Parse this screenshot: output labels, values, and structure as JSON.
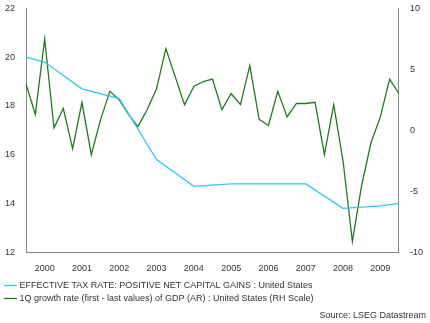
{
  "chart_data": {
    "type": "line",
    "source": "Source: LSEG Datastream",
    "categories": [
      null,
      null,
      "2000",
      null,
      null,
      null,
      "2001",
      null,
      null,
      null,
      "2002",
      null,
      null,
      null,
      "2003",
      null,
      null,
      null,
      "2004",
      null,
      null,
      null,
      "2005",
      null,
      null,
      null,
      "2006",
      null,
      null,
      null,
      "2007",
      null,
      null,
      null,
      "2008",
      null,
      null,
      null,
      "2009",
      null,
      null
    ],
    "series": [
      {
        "name": "EFFECTIVE TAX RATE: POSITIVE NET CAPITAL GAINS : United States",
        "color": "#33c6f0",
        "axis": "y",
        "values": [
          20.0,
          null,
          19.8,
          null,
          null,
          null,
          18.7,
          null,
          null,
          null,
          18.3,
          null,
          null,
          null,
          15.8,
          null,
          null,
          null,
          14.7,
          null,
          null,
          null,
          14.8,
          null,
          null,
          null,
          14.8,
          null,
          null,
          null,
          14.8,
          null,
          null,
          null,
          13.8,
          null,
          null,
          null,
          13.9,
          null,
          14.0
        ]
      },
      {
        "name": "1Q growth rate (first - last values) of GDP (AR) : United States (RH Scale)",
        "color": "#1f7a1f",
        "axis": "y2",
        "values": [
          3.8,
          1.3,
          7.5,
          0.2,
          1.8,
          -1.5,
          2.3,
          -2.0,
          0.9,
          3.2,
          2.5,
          1.3,
          0.3,
          1.7,
          3.4,
          6.7,
          4.4,
          2.1,
          3.6,
          4.0,
          4.2,
          1.7,
          3.0,
          2.1,
          5.3,
          0.9,
          0.4,
          3.2,
          1.1,
          2.2,
          2.2,
          2.3,
          -2.0,
          2.1,
          -2.5,
          -9.1,
          -4.5,
          -1.0,
          1.1,
          4.2,
          3.0
        ]
      }
    ],
    "ylim": [
      12,
      22
    ],
    "yticks": [
      12,
      14,
      16,
      18,
      20,
      22
    ],
    "y2lim": [
      -10,
      10
    ],
    "y2ticks": [
      -10,
      -5,
      0,
      5,
      10
    ],
    "grid": false,
    "legend": "bottom"
  }
}
